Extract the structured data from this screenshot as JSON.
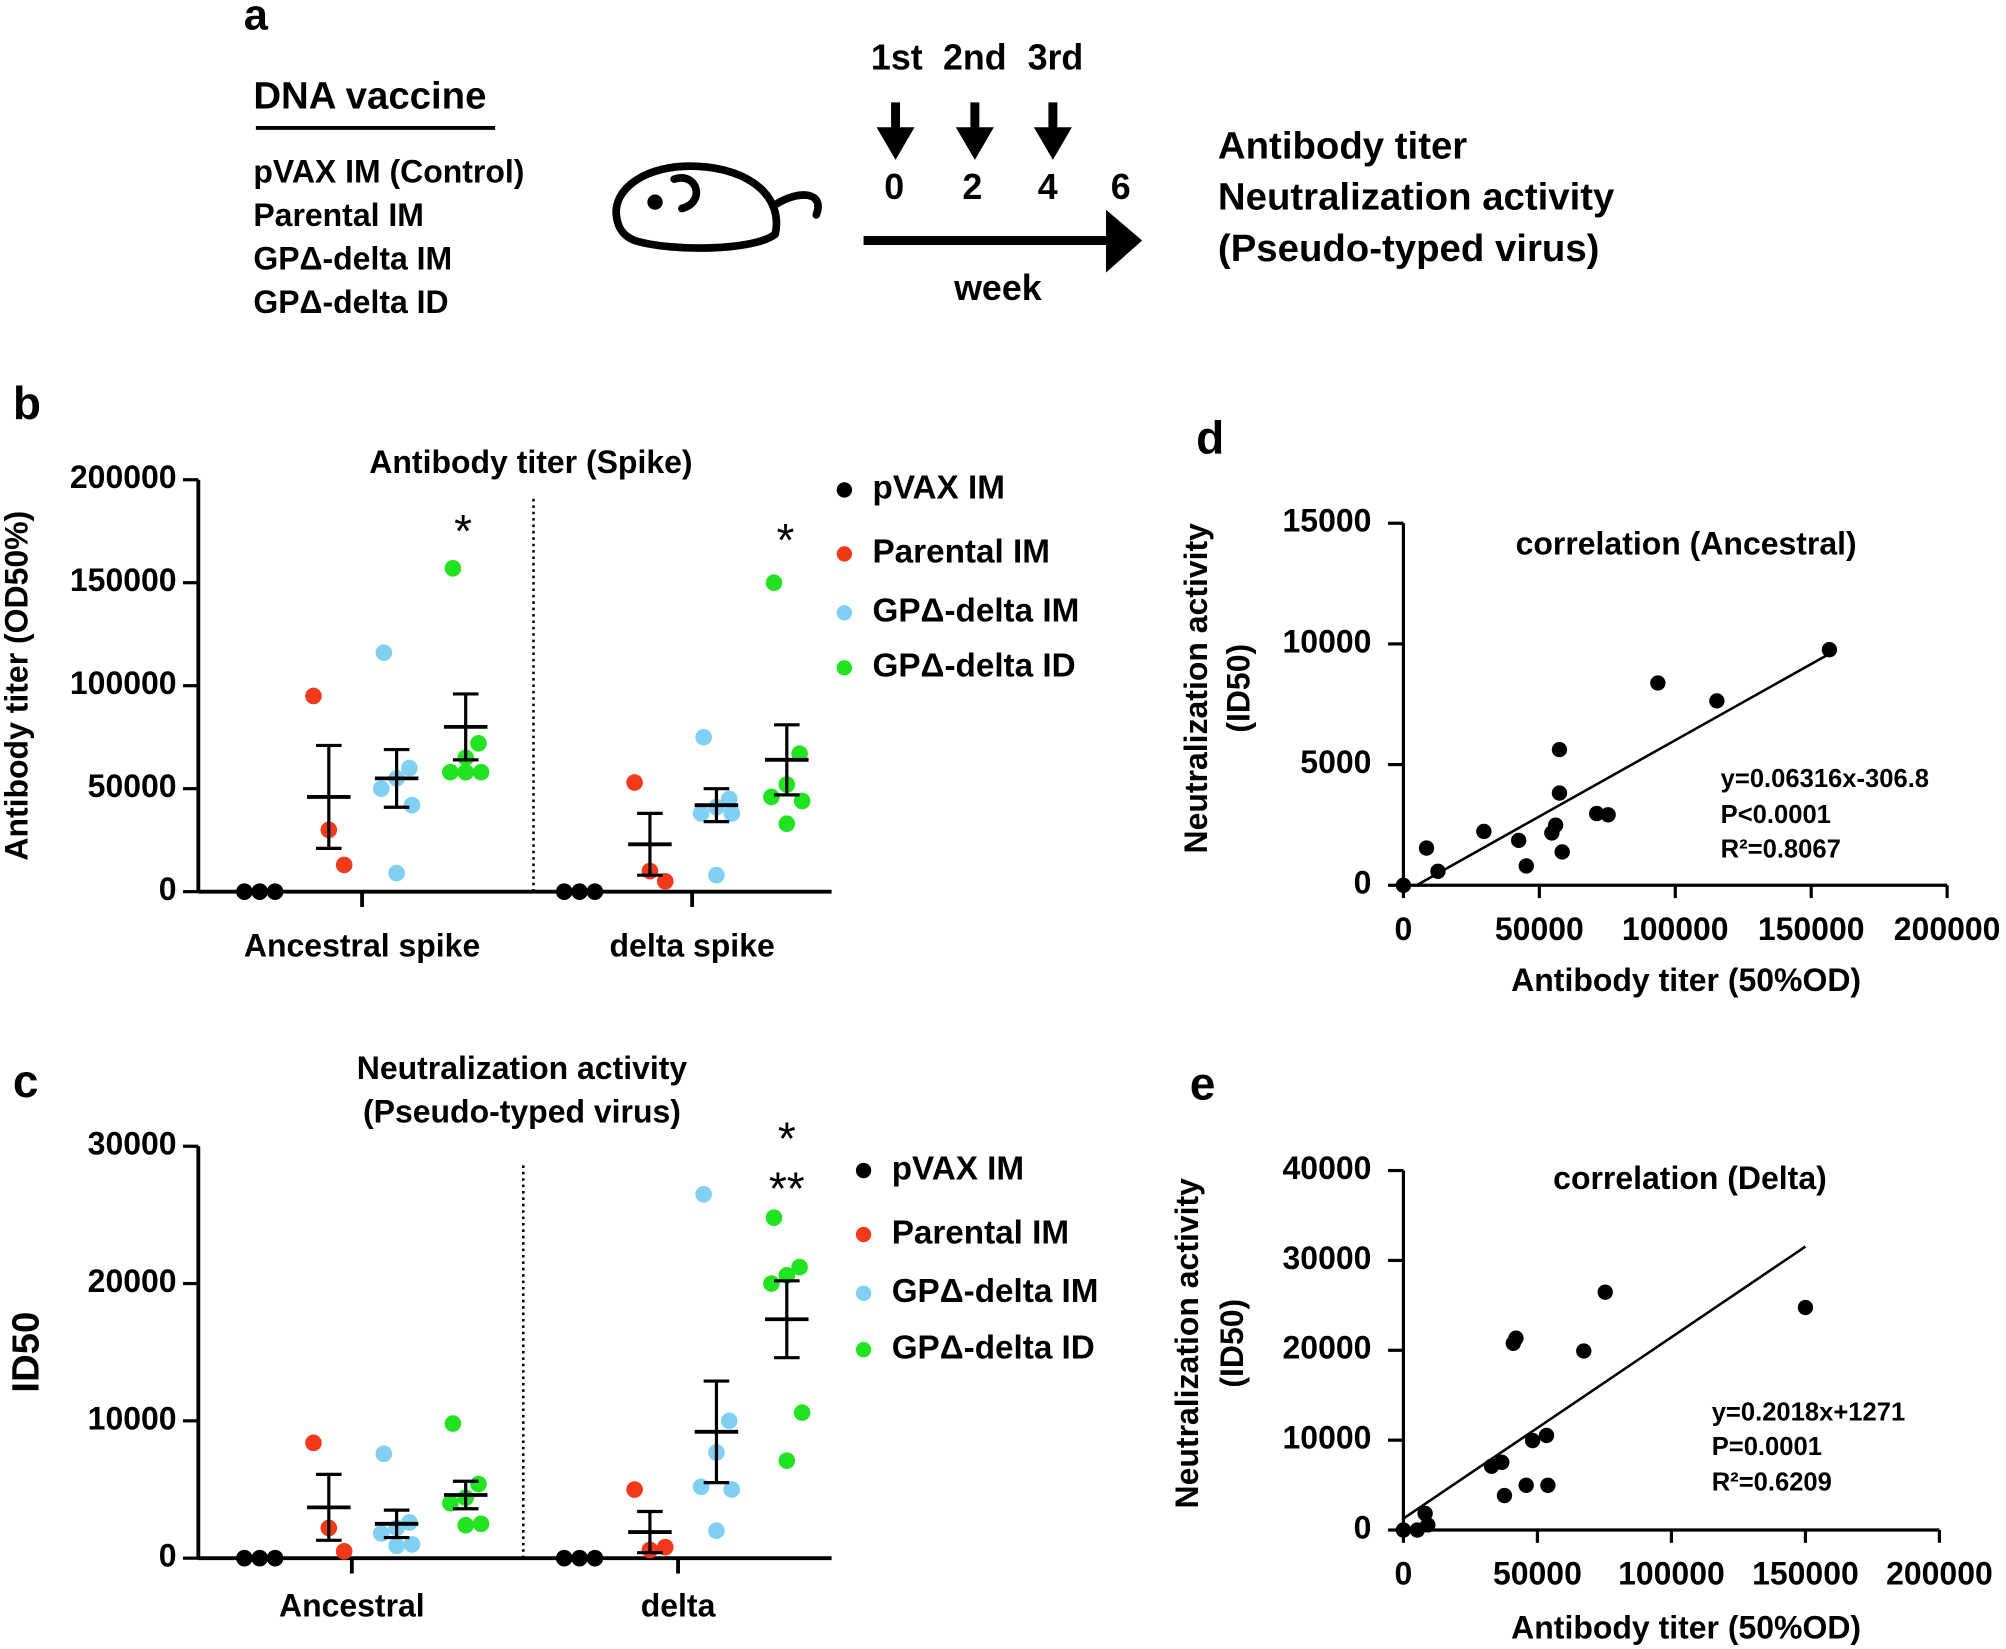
{
  "panel_a": {
    "label": "a",
    "vaccine_heading": "DNA vaccine",
    "groups": [
      "pVAX IM (Control)",
      "Parental IM",
      "GPΔ-delta IM",
      "GPΔ-delta ID"
    ],
    "doses": [
      "1st",
      "2nd",
      "3rd"
    ],
    "weeks": [
      "0",
      "2",
      "4",
      "6"
    ],
    "week_label": "week",
    "readouts": [
      "Antibody titer",
      "Neutralization activity",
      "(Pseudo-typed virus)"
    ]
  },
  "chart_data": [
    {
      "panel": "b",
      "type": "dot",
      "title": "Antibody titer (Spike)",
      "ylabel": "Antibody titer (OD50%)",
      "categories": [
        "Ancestral spike",
        "delta spike"
      ],
      "ylim": [
        0,
        200000
      ],
      "yticks": [
        0,
        50000,
        100000,
        150000,
        200000
      ],
      "series": [
        {
          "name": "pVAX IM",
          "color": "#000000",
          "values": [
            [
              0,
              0,
              0
            ],
            [
              0,
              0,
              0
            ]
          ],
          "mean": [
            0,
            0
          ],
          "sem": [
            0,
            0
          ]
        },
        {
          "name": "Parental IM",
          "color": "#f2391c",
          "values": [
            [
              95000,
              30000,
              13000
            ],
            [
              53000,
              10000,
              5000
            ]
          ],
          "mean": [
            46000,
            23000
          ],
          "sem": [
            25000,
            15000
          ]
        },
        {
          "name": "GPΔ-delta IM",
          "color": "#7fd0f2",
          "values": [
            [
              116000,
              60000,
              55000,
              50000,
              42000,
              9000
            ],
            [
              75000,
              45000,
              41000,
              38000,
              38000,
              8000
            ]
          ],
          "mean": [
            55000,
            42000
          ],
          "sem": [
            14000,
            8000
          ]
        },
        {
          "name": "GPΔ-delta ID",
          "color": "#22e322",
          "values": [
            [
              157000,
              72000,
              65000,
              58000,
              58000,
              58000
            ],
            [
              150000,
              67000,
              52000,
              46000,
              44000,
              33000
            ]
          ],
          "mean": [
            80000,
            64000
          ],
          "sem": [
            16000,
            17000
          ]
        }
      ],
      "annotations": [
        "*",
        "*"
      ]
    },
    {
      "panel": "c",
      "type": "dot",
      "title": [
        "Neutralization activity",
        "(Pseudo-typed virus)"
      ],
      "ylabel": "ID50",
      "categories": [
        "Ancestral",
        "delta"
      ],
      "ylim": [
        0,
        30000
      ],
      "yticks": [
        0,
        10000,
        20000,
        30000
      ],
      "series": [
        {
          "name": "pVAX IM",
          "color": "#000000",
          "values": [
            [
              0,
              0,
              0
            ],
            [
              0,
              0,
              0
            ]
          ],
          "mean": [
            0,
            0
          ],
          "sem": [
            0,
            0
          ]
        },
        {
          "name": "Parental IM",
          "color": "#f2391c",
          "values": [
            [
              8400,
              2200,
              500
            ],
            [
              5000,
              600,
              800
            ]
          ],
          "mean": [
            3700,
            1900
          ],
          "sem": [
            2400,
            1500
          ]
        },
        {
          "name": "GPΔ-delta IM",
          "color": "#7fd0f2",
          "values": [
            [
              7600,
              2600,
              2200,
              1800,
              1000,
              900
            ],
            [
              26500,
              10000,
              7700,
              5200,
              5000,
              2000
            ]
          ],
          "mean": [
            2500,
            9200
          ],
          "sem": [
            1000,
            3700
          ]
        },
        {
          "name": "GPΔ-delta ID",
          "color": "#22e322",
          "values": [
            [
              9800,
              5400,
              4400,
              4000,
              2500,
              2400
            ],
            [
              24800,
              21200,
              20600,
              20000,
              10600,
              7100
            ]
          ],
          "mean": [
            4600,
            17400
          ],
          "sem": [
            1000,
            2800
          ]
        }
      ],
      "annotations": [
        "*",
        "**"
      ]
    },
    {
      "panel": "d",
      "type": "scatter",
      "title": "correlation (Ancestral)",
      "xlabel": "Antibody titer (50%OD)",
      "ylabel": [
        "Neutralization activity",
        "(ID50)"
      ],
      "color": "#000000",
      "x": [
        0,
        8500,
        12700,
        29600,
        42400,
        45200,
        54600,
        56000,
        57400,
        57400,
        58400,
        71100,
        75300,
        93600,
        115300,
        156700
      ],
      "values": [
        0,
        1540,
        580,
        2230,
        1860,
        800,
        2170,
        2490,
        5620,
        3820,
        1380,
        2970,
        2920,
        8380,
        7640,
        9760
      ],
      "xlim": [
        0,
        200000
      ],
      "xticks": [
        0,
        50000,
        100000,
        150000,
        200000
      ],
      "ylim": [
        0,
        15000
      ],
      "yticks": [
        0,
        5000,
        10000,
        15000
      ],
      "fit": {
        "slope": 0.06316,
        "intercept": -306.8,
        "xrange": [
          4857,
          157000
        ]
      },
      "annotations": [
        "y=0.06316x-306.8",
        "P<0.0001",
        "R²=0.8067"
      ]
    },
    {
      "panel": "e",
      "type": "scatter",
      "title": "correlation (Delta)",
      "xlabel": "Antibody titer (50%OD)",
      "ylabel": [
        "Neutralization activity",
        "(ID50)"
      ],
      "color": "#000000",
      "x": [
        0,
        5200,
        8100,
        9100,
        32900,
        36700,
        37700,
        41000,
        42000,
        45800,
        48200,
        53400,
        53900,
        67300,
        75300,
        150000
      ],
      "values": [
        0,
        0,
        1850,
        570,
        7100,
        7540,
        3840,
        20780,
        21350,
        4980,
        9960,
        10530,
        4980,
        19920,
        26470,
        24760
      ],
      "xlim": [
        0,
        200000
      ],
      "xticks": [
        0,
        50000,
        100000,
        150000,
        200000
      ],
      "ylim": [
        0,
        40000
      ],
      "yticks": [
        0,
        10000,
        20000,
        30000,
        40000
      ],
      "fit": {
        "slope": 0.2018,
        "intercept": 1271,
        "xrange": [
          0,
          150000
        ]
      },
      "annotations": [
        "y=0.2018x+1271",
        "P=0.0001",
        "R²=0.6209"
      ]
    }
  ]
}
